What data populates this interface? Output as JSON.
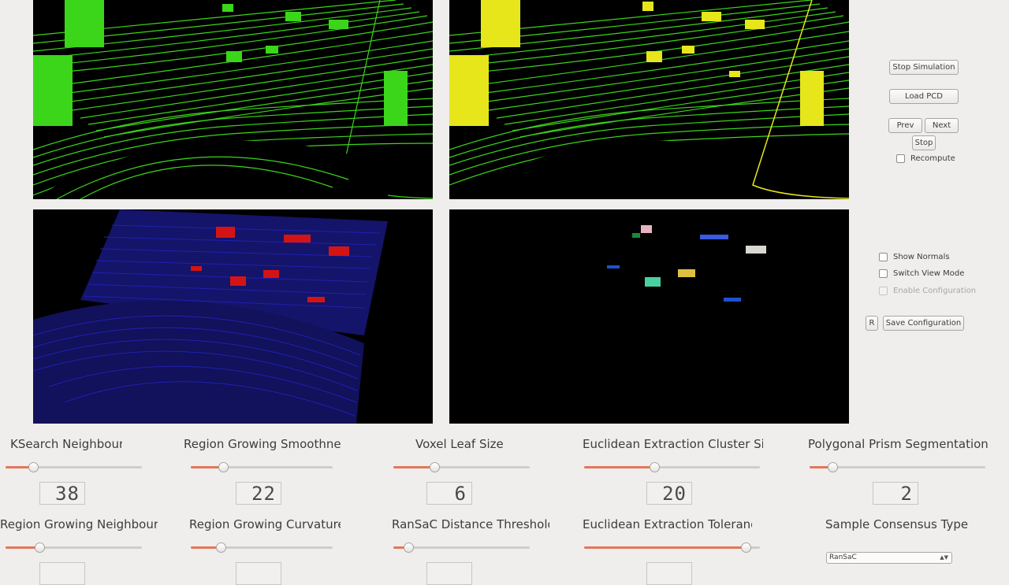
{
  "controls": {
    "stop_simulation": "Stop Simulation",
    "load_pcd": "Load PCD",
    "prev": "Prev",
    "next": "Next",
    "stop": "Stop",
    "recompute": "Recompute",
    "show_normals": "Show Normals",
    "switch_view_mode": "Switch View Mode",
    "enable_configuration": "Enable Configuration",
    "reset": "R",
    "save_configuration": "Save Configuration"
  },
  "params": {
    "ksearch": {
      "label": "KSearch Neighbours",
      "value": "38",
      "level": 0.2
    },
    "rg_smoothness": {
      "label": "Region Growing Smoothness",
      "value": "22",
      "level": 0.23
    },
    "voxel": {
      "label": "Voxel Leaf Size",
      "value": "6",
      "level": 0.3
    },
    "euclid_cluster": {
      "label": "Euclidean Extraction Cluster Size",
      "value": "20",
      "level": 0.4
    },
    "prism": {
      "label": "Polygonal Prism Segmentation",
      "value": "2",
      "level": 0.13
    },
    "rg_neighbours": {
      "label": "Region Growing Neighbours",
      "value": "",
      "level": 0.25
    },
    "rg_curvature": {
      "label": "Region Growing Curvature",
      "value": "",
      "level": 0.21
    },
    "ransac_threshold": {
      "label": "RanSaC Distance Threshold",
      "value": "",
      "level": 0.11
    },
    "euclid_tolerance": {
      "label": "Euclidean Extraction Tolerance",
      "value": "",
      "level": 0.92
    },
    "consensus": {
      "label": "Sample Consensus Type",
      "selected": "RanSaC"
    }
  },
  "colors": {
    "accent": "#e2785a",
    "green_cloud": "#3bd61a",
    "yellow_cloud": "#e6e61a",
    "blue_cloud": "#1c1c9e",
    "red_cloud": "#d41414"
  }
}
